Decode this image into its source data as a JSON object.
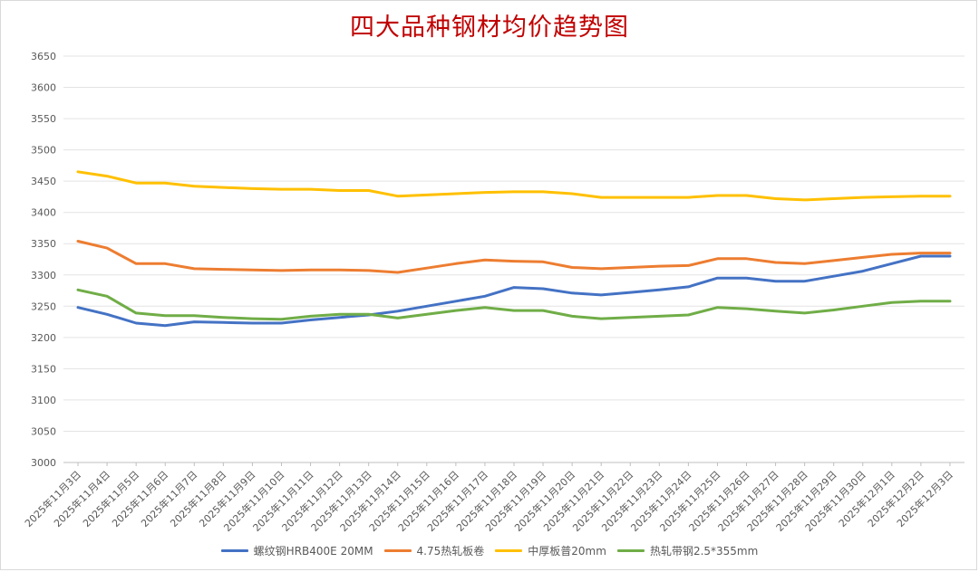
{
  "chart_data": {
    "type": "line",
    "title": "四大品种钢材均价趋势图",
    "xlabel": "",
    "ylabel": "",
    "ylim": [
      3000,
      3650
    ],
    "ytick_step": 50,
    "grid": true,
    "legend_position": "bottom",
    "categories": [
      "2025年11月3日",
      "2025年11月4日",
      "2025年11月5日",
      "2025年11月6日",
      "2025年11月7日",
      "2025年11月8日",
      "2025年11月9日",
      "2025年11月10日",
      "2025年11月11日",
      "2025年11月12日",
      "2025年11月13日",
      "2025年11月14日",
      "2025年11月15日",
      "2025年11月16日",
      "2025年11月17日",
      "2025年11月18日",
      "2025年11月19日",
      "2025年11月20日",
      "2025年11月21日",
      "2025年11月22日",
      "2025年11月23日",
      "2025年11月24日",
      "2025年11月25日",
      "2025年11月26日",
      "2025年11月27日",
      "2025年11月28日",
      "2025年11月29日",
      "2025年11月30日",
      "2025年12月1日",
      "2025年12月2日",
      "2025年12月3日"
    ],
    "series": [
      {
        "name": "螺纹钢HRB400E 20MM",
        "color": "#4472c4",
        "values": [
          3248,
          3237,
          3223,
          3219,
          3225,
          3224,
          3223,
          3223,
          3228,
          3232,
          3236,
          3242,
          3250,
          3258,
          3266,
          3280,
          3278,
          3271,
          3268,
          3272,
          3276,
          3281,
          3295,
          3295,
          3290,
          3290,
          3298,
          3306,
          3318,
          3330,
          3330
        ]
      },
      {
        "name": "4.75热轧板卷",
        "color": "#ed7d31",
        "values": [
          3354,
          3343,
          3318,
          3318,
          3310,
          3309,
          3308,
          3307,
          3308,
          3308,
          3307,
          3304,
          3311,
          3318,
          3324,
          3322,
          3321,
          3312,
          3310,
          3312,
          3314,
          3315,
          3326,
          3326,
          3320,
          3318,
          3323,
          3328,
          3333,
          3335,
          3335
        ]
      },
      {
        "name": "中厚板普20mm",
        "color": "#ffc000",
        "values": [
          3465,
          3458,
          3447,
          3447,
          3442,
          3440,
          3438,
          3437,
          3437,
          3435,
          3435,
          3426,
          3428,
          3430,
          3432,
          3433,
          3433,
          3430,
          3424,
          3424,
          3424,
          3424,
          3427,
          3427,
          3422,
          3420,
          3422,
          3424,
          3425,
          3426,
          3426
        ]
      },
      {
        "name": "热轧带钢2.5*355mm",
        "color": "#70ad47",
        "values": [
          3276,
          3266,
          3239,
          3235,
          3235,
          3232,
          3230,
          3229,
          3234,
          3237,
          3237,
          3231,
          3237,
          3243,
          3248,
          3243,
          3243,
          3234,
          3230,
          3232,
          3234,
          3236,
          3248,
          3246,
          3242,
          3239,
          3244,
          3250,
          3256,
          3258,
          3258
        ]
      }
    ]
  }
}
